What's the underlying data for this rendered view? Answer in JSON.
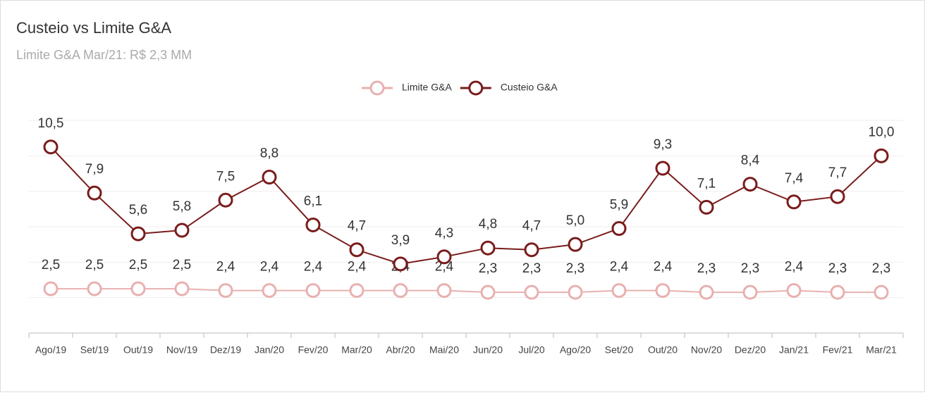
{
  "chart_data": {
    "type": "line",
    "title": "Custeio vs Limite G&A",
    "subtitle": "Limite G&A Mar/21: R$ 2,3 MM",
    "categories": [
      "Ago/19",
      "Set/19",
      "Out/19",
      "Nov/19",
      "Dez/19",
      "Jan/20",
      "Fev/20",
      "Mar/20",
      "Abr/20",
      "Mai/20",
      "Jun/20",
      "Jul/20",
      "Ago/20",
      "Set/20",
      "Out/20",
      "Nov/20",
      "Dez/20",
      "Jan/21",
      "Fev/21",
      "Mar/21"
    ],
    "series": [
      {
        "name": "Limite G&A",
        "color": "#e8b0b0",
        "values": [
          2.5,
          2.5,
          2.5,
          2.5,
          2.4,
          2.4,
          2.4,
          2.4,
          2.4,
          2.4,
          2.3,
          2.3,
          2.3,
          2.4,
          2.4,
          2.3,
          2.3,
          2.4,
          2.3,
          2.3
        ],
        "value_labels": [
          "2,5",
          "2,5",
          "2,5",
          "2,5",
          "2,4",
          "2,4",
          "2,4",
          "2,4",
          "2,4",
          "2,4",
          "2,3",
          "2,3",
          "2,3",
          "2,4",
          "2,4",
          "2,3",
          "2,3",
          "2,4",
          "2,3",
          "2,3"
        ]
      },
      {
        "name": "Custeio G&A",
        "color": "#7a1c1c",
        "values": [
          10.5,
          7.9,
          5.6,
          5.8,
          7.5,
          8.8,
          6.1,
          4.7,
          3.9,
          4.3,
          4.8,
          4.7,
          5.0,
          5.9,
          9.3,
          7.1,
          8.4,
          7.4,
          7.7,
          10.0
        ],
        "value_labels": [
          "10,5",
          "7,9",
          "5,6",
          "5,8",
          "7,5",
          "8,8",
          "6,1",
          "4,7",
          "3,9",
          "4,3",
          "4,8",
          "4,7",
          "5,0",
          "5,9",
          "9,3",
          "7,1",
          "8,4",
          "7,4",
          "7,7",
          "10,0"
        ]
      }
    ],
    "ylim": [
      0,
      12
    ],
    "yticks": [
      0,
      2,
      4,
      6,
      8,
      10,
      12
    ],
    "grid": true,
    "legend": "top"
  }
}
